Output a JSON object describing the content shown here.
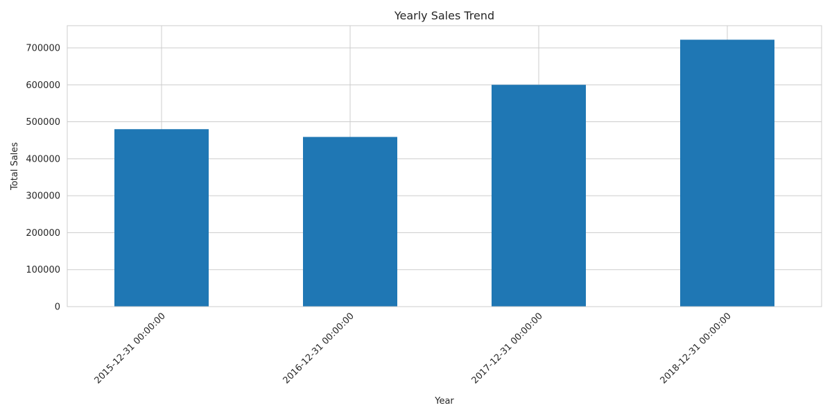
{
  "chart_data": {
    "type": "bar",
    "title": "Yearly Sales Trend",
    "xlabel": "Year",
    "ylabel": "Total Sales",
    "categories": [
      "2015-12-31 00:00:00",
      "2016-12-31 00:00:00",
      "2017-12-31 00:00:00",
      "2018-12-31 00:00:00"
    ],
    "values": [
      480000,
      459000,
      600000,
      722000
    ],
    "ylim": [
      0,
      760000
    ],
    "yticks": [
      0,
      100000,
      200000,
      300000,
      400000,
      500000,
      600000,
      700000
    ],
    "ytick_labels": [
      "0",
      "100000",
      "200000",
      "300000",
      "400000",
      "500000",
      "600000",
      "700000"
    ],
    "grid": true,
    "bar_color": "#1f77b4",
    "grid_color": "#cccccc"
  }
}
